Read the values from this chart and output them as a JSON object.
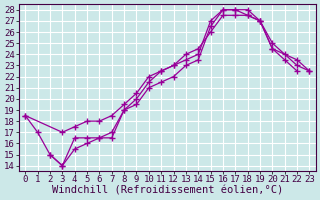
{
  "xlabel": "Windchill (Refroidissement éolien,°C)",
  "background_color": "#cce8e8",
  "grid_color": "#ffffff",
  "line_color": "#990099",
  "xlim": [
    -0.5,
    23.5
  ],
  "ylim": [
    13.5,
    28.5
  ],
  "xticks": [
    0,
    1,
    2,
    3,
    4,
    5,
    6,
    7,
    8,
    9,
    10,
    11,
    12,
    13,
    14,
    15,
    16,
    17,
    18,
    19,
    20,
    21,
    22,
    23
  ],
  "yticks": [
    14,
    15,
    16,
    17,
    18,
    19,
    20,
    21,
    22,
    23,
    24,
    25,
    26,
    27,
    28
  ],
  "line1_x": [
    0,
    1,
    2,
    3,
    4,
    5,
    6,
    7,
    8,
    9,
    10,
    11,
    12,
    13,
    14,
    15,
    16,
    17,
    18,
    19,
    20,
    21,
    22
  ],
  "line1_y": [
    18.5,
    17,
    15,
    14,
    16.5,
    16.5,
    16.5,
    17,
    19,
    20,
    21.5,
    22.5,
    23,
    23.5,
    24,
    27,
    28,
    28,
    27.5,
    27,
    24.5,
    23.5,
    22.5
  ],
  "line2_x": [
    0,
    3,
    4,
    5,
    6,
    7,
    8,
    9,
    10,
    11,
    12,
    13,
    14,
    15,
    16,
    17,
    18,
    19,
    20,
    22,
    23
  ],
  "line2_y": [
    18.5,
    17,
    17.5,
    18,
    18,
    18.5,
    19.5,
    20.5,
    22,
    22.5,
    23,
    24,
    24.5,
    26,
    27.5,
    27.5,
    27.5,
    27,
    25,
    23,
    22.5
  ],
  "line3_x": [
    2,
    3,
    4,
    5,
    6,
    7,
    8,
    9,
    10,
    11,
    12,
    13,
    14,
    15,
    16,
    17,
    18,
    19,
    20,
    21,
    22,
    23
  ],
  "line3_y": [
    15,
    14,
    15.5,
    16,
    16.5,
    16.5,
    19,
    19.5,
    21,
    21.5,
    22,
    23,
    23.5,
    26.5,
    28,
    28,
    28,
    27,
    24.5,
    24,
    23.5,
    22.5
  ],
  "font_name": "monospace",
  "tick_fontsize": 6.5,
  "xlabel_fontsize": 7.5
}
